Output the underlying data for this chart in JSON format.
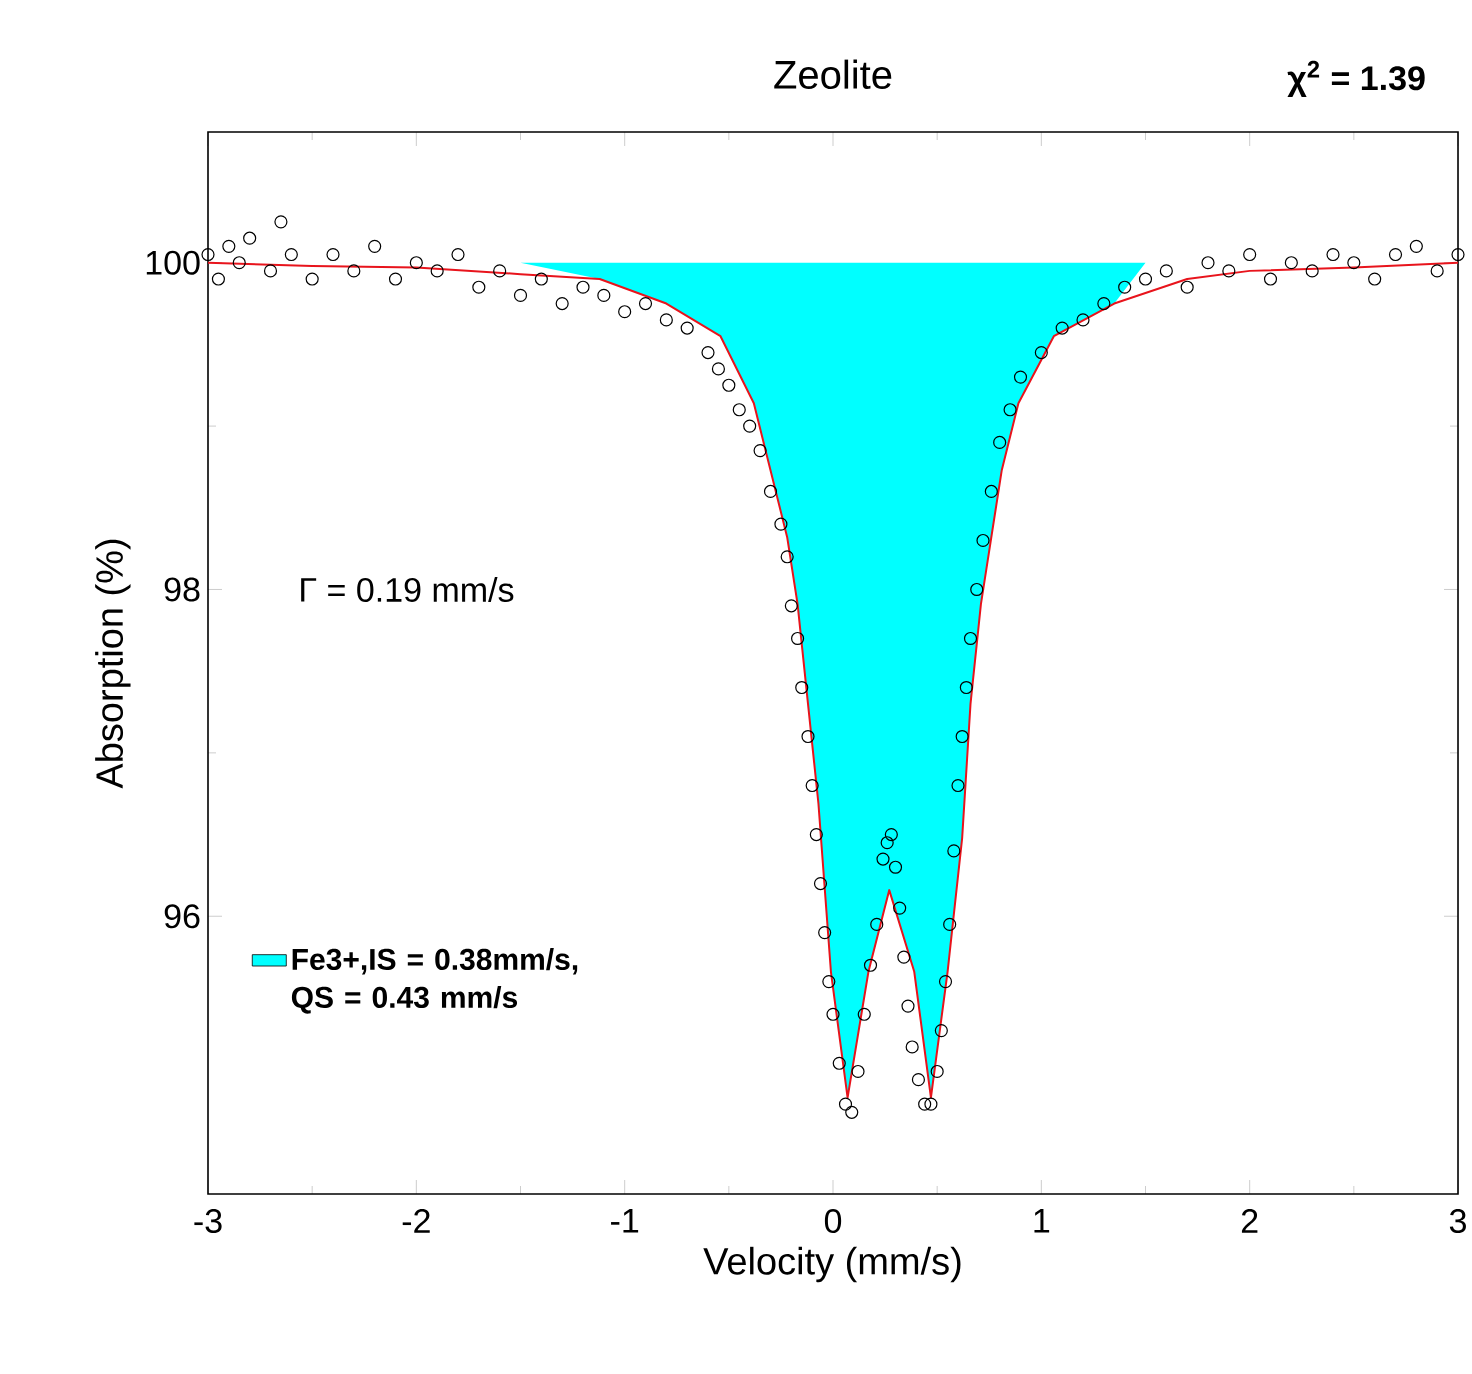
{
  "chart_data": {
    "type": "line",
    "title": "Zeolite",
    "xlabel": "Velocity (mm/s)",
    "ylabel": "Absorption (%)",
    "annotations": [
      "Γ = 0.19 mm/s",
      "**χ$^{2}$ = 1.39**"
    ],
    "xlim": [
      -3,
      3
    ],
    "ylim": [
      94.3,
      100.8
    ],
    "xticks": [
      -3,
      -2,
      -1,
      0,
      1,
      2,
      3
    ],
    "yticks": [
      96,
      98,
      100
    ],
    "legend": "left",
    "series": [
      {
        "type": "area",
        "name": "**Fe3+,IS = 0.38mm/s, QS = 0.43 mm/s**",
        "color": "#00ffff",
        "x": [
          -1.5,
          -1.12,
          -0.8,
          -0.54,
          -0.38,
          -0.3,
          -0.22,
          -0.17,
          -0.12,
          -0.07,
          -0.01,
          0.07,
          0.17,
          0.27,
          0.39,
          0.47,
          0.55,
          0.62,
          0.66,
          0.71,
          0.76,
          0.81,
          0.89,
          1.06,
          1.35,
          1.5
        ],
        "values": [
          100,
          99.9,
          99.75,
          99.55,
          99.14,
          98.73,
          98.32,
          97.91,
          97.3,
          96.69,
          95.66,
          94.89,
          95.66,
          96.16,
          95.66,
          94.89,
          95.66,
          96.48,
          97.3,
          97.91,
          98.32,
          98.73,
          99.14,
          99.55,
          99.75,
          100
        ]
      },
      {
        "color": "#e8141c",
        "x": [
          -3,
          -2.5,
          -2,
          -1.5,
          -1.12,
          -0.8,
          -0.54,
          -0.38,
          -0.3,
          -0.22,
          -0.17,
          -0.12,
          -0.07,
          -0.01,
          0.07,
          0.17,
          0.27,
          0.39,
          0.47,
          0.55,
          0.62,
          0.66,
          0.71,
          0.76,
          0.81,
          0.89,
          1.06,
          1.35,
          1.7,
          2,
          2.5,
          3
        ],
        "values": [
          100,
          99.98,
          99.97,
          99.93,
          99.9,
          99.75,
          99.55,
          99.14,
          98.73,
          98.32,
          97.91,
          97.3,
          96.69,
          95.66,
          94.89,
          95.66,
          96.16,
          95.66,
          94.89,
          95.66,
          96.48,
          97.3,
          97.91,
          98.32,
          98.73,
          99.14,
          99.55,
          99.75,
          99.9,
          99.95,
          99.97,
          100
        ]
      },
      {
        "type": "scatter",
        "marker": "circle",
        "color": "#000000",
        "x": [
          -3.0,
          -2.95,
          -2.9,
          -2.85,
          -2.8,
          -2.7,
          -2.65,
          -2.6,
          -2.5,
          -2.4,
          -2.3,
          -2.2,
          -2.1,
          -2.0,
          -1.9,
          -1.8,
          -1.7,
          -1.6,
          -1.5,
          -1.4,
          -1.3,
          -1.2,
          -1.1,
          -1.0,
          -0.9,
          -0.8,
          -0.7,
          -0.6,
          -0.55,
          -0.5,
          -0.45,
          -0.4,
          -0.35,
          -0.3,
          -0.25,
          -0.22,
          -0.2,
          -0.17,
          -0.15,
          -0.12,
          -0.1,
          -0.08,
          -0.06,
          -0.04,
          -0.02,
          0.0,
          0.03,
          0.06,
          0.09,
          0.12,
          0.15,
          0.18,
          0.21,
          0.24,
          0.26,
          0.28,
          0.3,
          0.32,
          0.34,
          0.36,
          0.38,
          0.41,
          0.44,
          0.47,
          0.5,
          0.52,
          0.54,
          0.56,
          0.58,
          0.6,
          0.62,
          0.64,
          0.66,
          0.69,
          0.72,
          0.76,
          0.8,
          0.85,
          0.9,
          1.0,
          1.1,
          1.2,
          1.3,
          1.4,
          1.5,
          1.6,
          1.7,
          1.8,
          1.9,
          2.0,
          2.1,
          2.2,
          2.3,
          2.4,
          2.5,
          2.6,
          2.7,
          2.8,
          2.9,
          3.0
        ],
        "values": [
          100.05,
          99.9,
          100.1,
          100.0,
          100.15,
          99.95,
          100.25,
          100.05,
          99.9,
          100.05,
          99.95,
          100.1,
          99.9,
          100.0,
          99.95,
          100.05,
          99.85,
          99.95,
          99.8,
          99.9,
          99.75,
          99.85,
          99.8,
          99.7,
          99.75,
          99.65,
          99.6,
          99.45,
          99.35,
          99.25,
          99.1,
          99.0,
          98.85,
          98.6,
          98.4,
          98.2,
          97.9,
          97.7,
          97.4,
          97.1,
          96.8,
          96.5,
          96.2,
          95.9,
          95.6,
          95.4,
          95.1,
          94.85,
          94.8,
          95.05,
          95.4,
          95.7,
          95.95,
          96.35,
          96.45,
          96.5,
          96.3,
          96.05,
          95.75,
          95.45,
          95.2,
          95.0,
          94.85,
          94.85,
          95.05,
          95.3,
          95.6,
          95.95,
          96.4,
          96.8,
          97.1,
          97.4,
          97.7,
          98.0,
          98.3,
          98.6,
          98.9,
          99.1,
          99.3,
          99.45,
          99.6,
          99.65,
          99.75,
          99.85,
          99.9,
          99.95,
          99.85,
          100.0,
          99.95,
          100.05,
          99.9,
          100.0,
          99.95,
          100.05,
          100.0,
          99.9,
          100.05,
          100.1,
          99.95,
          100.05
        ]
      }
    ]
  }
}
